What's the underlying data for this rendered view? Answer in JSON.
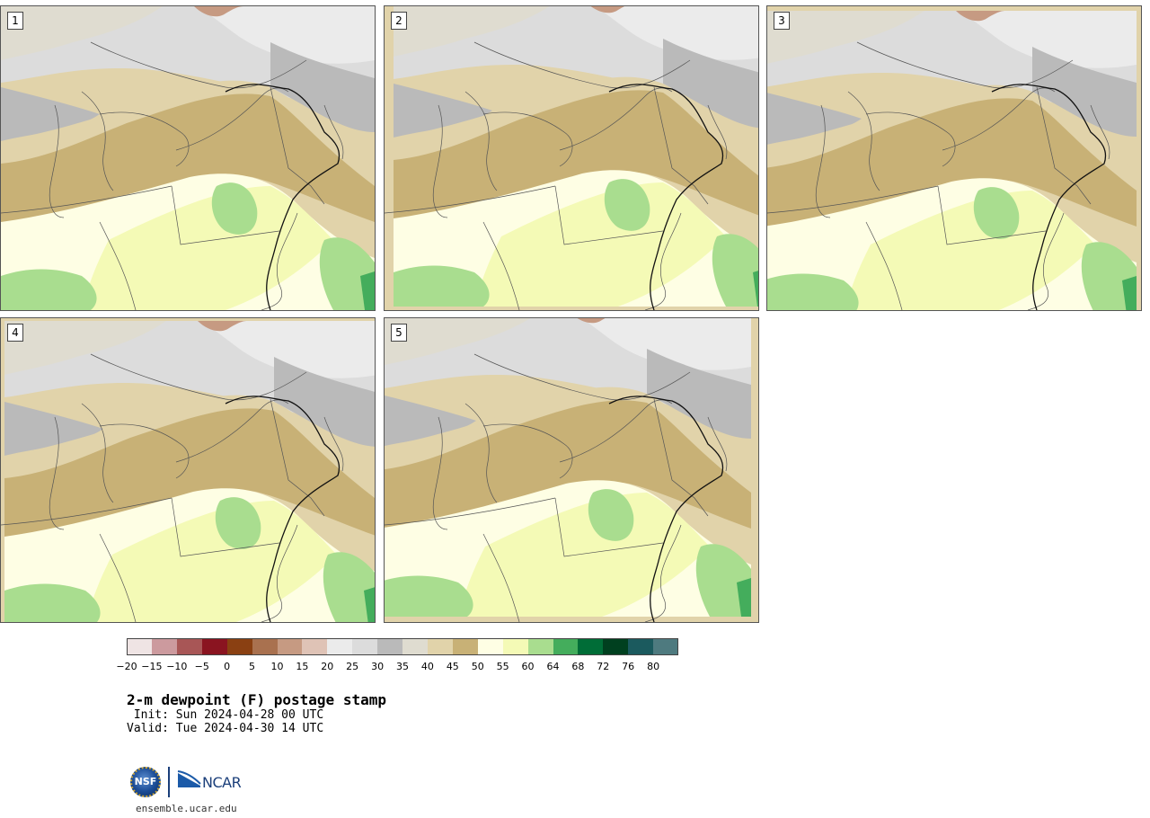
{
  "panels": [
    {
      "label": "1"
    },
    {
      "label": "2"
    },
    {
      "label": "3"
    },
    {
      "label": "4"
    },
    {
      "label": "5"
    }
  ],
  "colorbar": {
    "colors": [
      "#efe4e4",
      "#cc9a9e",
      "#a85656",
      "#8a1420",
      "#8a4012",
      "#a9714f",
      "#c69a82",
      "#dfc3b6",
      "#ebebeb",
      "#dcdcdc",
      "#bababa",
      "#dfdcd0",
      "#e1d3aa",
      "#c8b176",
      "#fefee4",
      "#f4fab6",
      "#a9dd8f",
      "#44ad5c",
      "#006d37",
      "#00401f",
      "#1b5a5e",
      "#4e7a7f"
    ],
    "tick_labels": [
      "−20",
      "−15",
      "−10",
      "−5",
      "0",
      "5",
      "10",
      "15",
      "20",
      "25",
      "30",
      "35",
      "40",
      "45",
      "50",
      "55",
      "60",
      "64",
      "68",
      "72",
      "76",
      "80"
    ]
  },
  "title": "2-m dewpoint (F) postage stamp",
  "init": " Init: Sun 2024-04-28 00 UTC",
  "valid": "Valid: Tue 2024-04-30 14 UTC",
  "logos": {
    "nsf": "NSF",
    "ncar": "NCAR"
  },
  "website": "ensemble.ucar.edu"
}
